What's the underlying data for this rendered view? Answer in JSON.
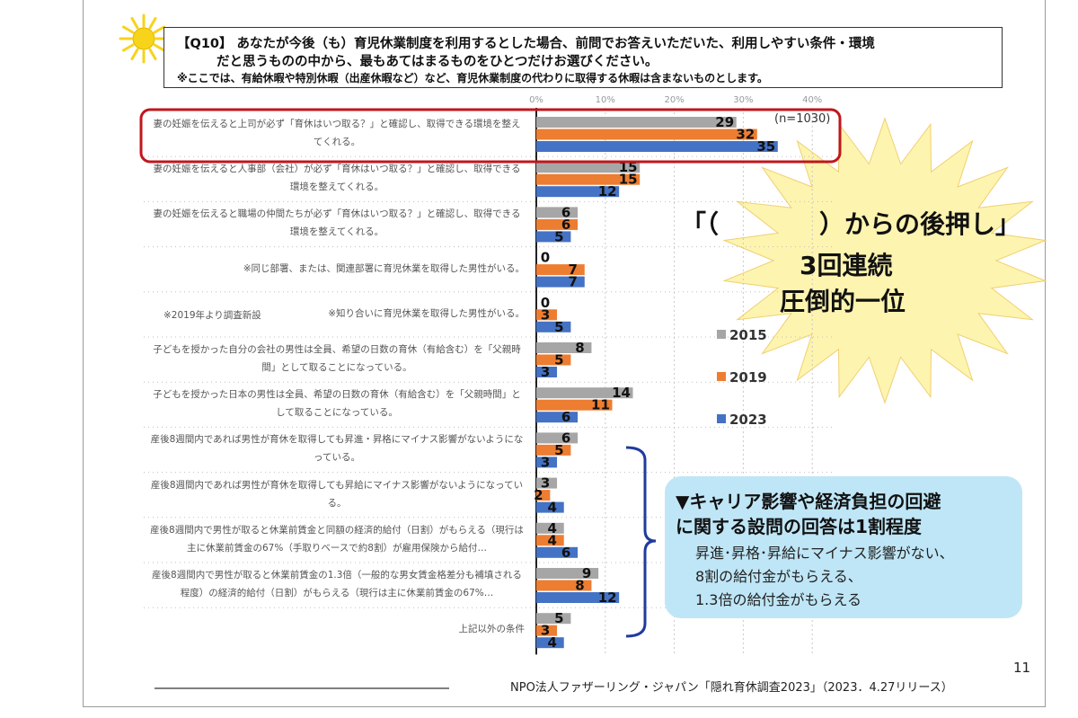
{
  "question": {
    "line1": "【Q10】 あなたが今後（も）育児休業制度を利用するとした場合、前問でお答えいただいた、利用しやすい条件・環境",
    "line2": "だと思うものの中から、最もあてはまるものをひとつだけお選びください。",
    "note": "※ここでは、有給休暇や特別休暇（出産休暇など）など、育児休業制度の代わりに取得する休暇は含まないものとします。"
  },
  "chart_data": {
    "type": "bar",
    "orientation": "horizontal",
    "note": "(n=1030)",
    "xlim": [
      0,
      40
    ],
    "x_ticks": [
      "0%",
      "10%",
      "20%",
      "30%",
      "40%"
    ],
    "categories": [
      "妻の妊娠を伝えると上司が必ず「育休はいつ取る？」と確認し、取得できる環境を整えてくれる。",
      "妻の妊娠を伝えると人事部（会社）が必ず「育休はいつ取る？」と確認し、取得できる環境を整えてくれる。",
      "妻の妊娠を伝えると職場の仲間たちが必ず「育休はいつ取る？」と確認し、取得できる環境を整えてくれる。",
      "※同じ部署、または、関連部署に育児休業を取得した男性がいる。",
      "※知り合いに育児休業を取得した男性がいる。",
      "子どもを授かった自分の会社の男性は全員、希望の日数の育休（有給含む）を「父親時間」として取ることになっている。",
      "子どもを授かった日本の男性は全員、希望の日数の育休（有給含む）を「父親時間」として取ることになっている。",
      "産後8週間内であれば男性が育休を取得しても昇進・昇格にマイナス影響がないようになっている。",
      "産後8週間内であれば男性が育休を取得しても昇給にマイナス影響がないようになっている。",
      "産後8週間内で男性が取ると休業前賃金と同額の経済的給付（日割）がもらえる（現行は主に休業前賃金の67%（手取りベースで約8割）が雇用保険から給付…",
      "産後8週間内で男性が取ると休業前賃金の1.3倍（一般的な男女賃金格差分も補填される程度）の経済的給付（日割）がもらえる（現行は主に休業前賃金の67%…",
      "上記以外の条件"
    ],
    "series": [
      {
        "name": "2015",
        "color": "#a6a6a6",
        "values": [
          29,
          15,
          6,
          0,
          0,
          8,
          14,
          6,
          3,
          4,
          9,
          5
        ]
      },
      {
        "name": "2019",
        "color": "#ed7d31",
        "values": [
          32,
          15,
          6,
          7,
          3,
          5,
          11,
          5,
          2,
          4,
          8,
          3
        ]
      },
      {
        "name": "2023",
        "color": "#4472c4",
        "values": [
          35,
          12,
          5,
          7,
          5,
          3,
          6,
          3,
          4,
          6,
          12,
          4
        ]
      }
    ],
    "annotation": "※2019年より調査新設",
    "legend_position": "right"
  },
  "burst": {
    "line1": "「（　　　　）からの後押し」",
    "line2": "3回連続",
    "line3": "圧倒的一位"
  },
  "callout": {
    "head1": "▼キャリア影響や経済負担の回避",
    "head2": "に関する設問の回答は1割程度",
    "line1": "昇進･昇格･昇給にマイナス影響がない、",
    "line2": "8割の給付金がもらえる、",
    "line3": "1.3倍の給付金がもらえる"
  },
  "footer": {
    "source": "NPO法人ファザーリング・ジャパン「隠れ育休調査2023」（2023．4.27リリース）",
    "page": "11"
  },
  "colors": {
    "highlight_border": "#c0161b",
    "brace": "#1f3b9c",
    "burst_fill": "#fdf4b0",
    "callout_fill": "#bfe6f6",
    "sun": "#f7d31a"
  }
}
